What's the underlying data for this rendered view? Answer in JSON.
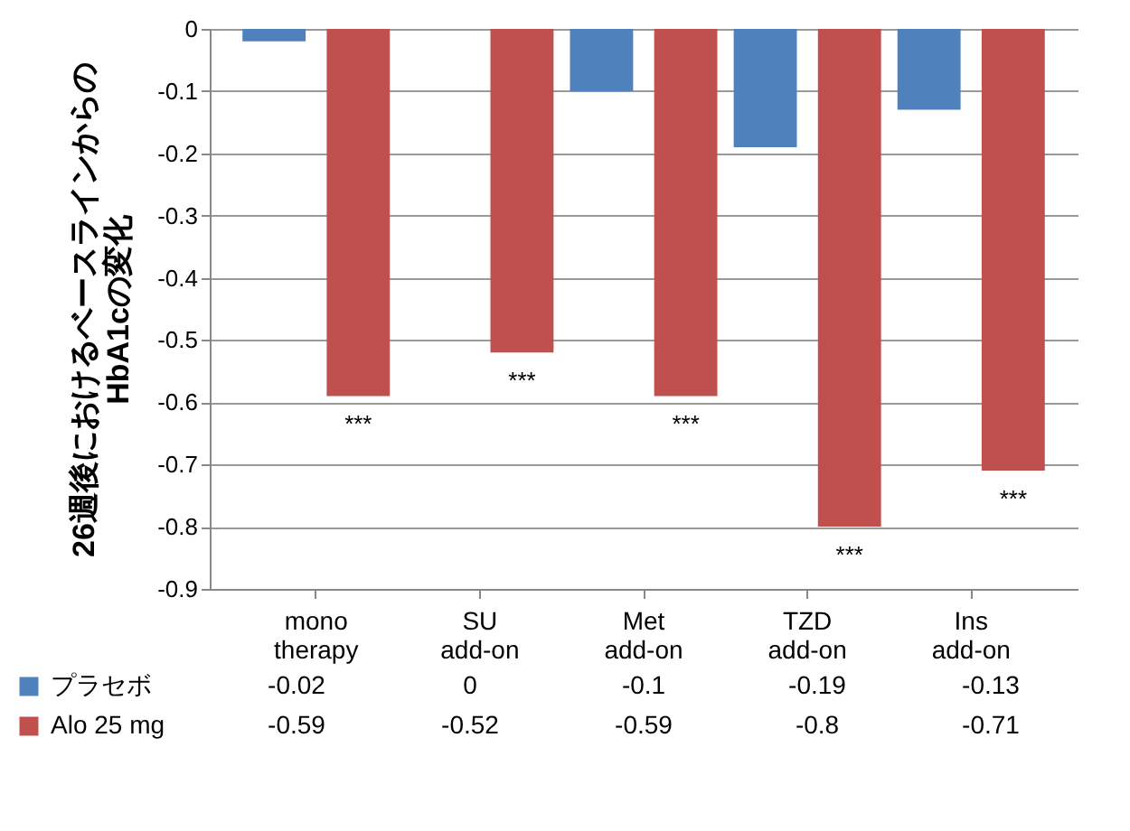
{
  "chart_data": {
    "type": "bar",
    "ylabel": "26週後におけるベースラインからの\nHbA1cの変化",
    "categories": [
      "mono therapy",
      "SU add-on",
      "Met add-on",
      "TZD add-on",
      "Ins add-on"
    ],
    "series": [
      {
        "name": "プラセボ",
        "color": "#4f81bd",
        "values": [
          -0.02,
          0,
          -0.1,
          -0.19,
          -0.13
        ]
      },
      {
        "name": "Alo 25 mg",
        "color": "#c0504d",
        "values": [
          -0.59,
          -0.52,
          -0.59,
          -0.8,
          -0.71
        ]
      }
    ],
    "ylim": [
      -0.9,
      0
    ],
    "yticks": [
      0,
      -0.1,
      -0.2,
      -0.3,
      -0.4,
      -0.5,
      -0.6,
      -0.7,
      -0.8,
      -0.9
    ],
    "grid": true,
    "data_labels": true,
    "legend": "bottom left",
    "annotations": [
      "***",
      "***",
      "***",
      "***",
      "***"
    ]
  }
}
